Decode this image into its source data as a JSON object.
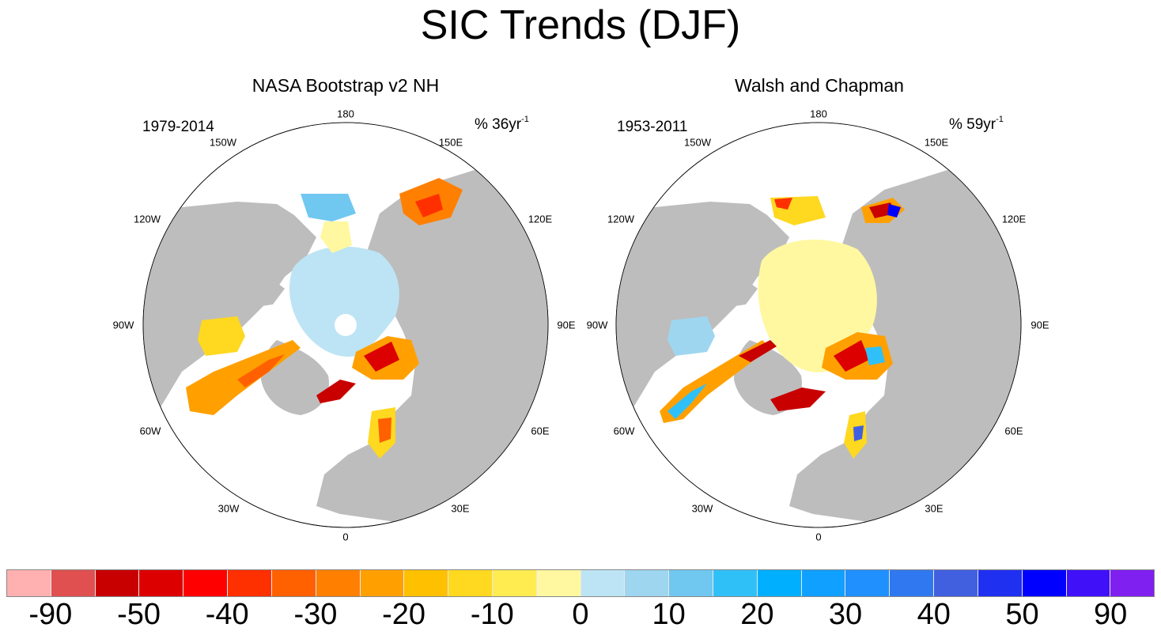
{
  "title": "SIC Trends (DJF)",
  "panels": [
    {
      "title": "NASA Bootstrap v2 NH",
      "years": "1979-2014",
      "units": "% 36yr",
      "units_sup": "-1"
    },
    {
      "title": "Walsh and Chapman",
      "years": "1953-2011",
      "units": "% 59yr",
      "units_sup": "-1"
    }
  ],
  "longitude_labels": [
    "180",
    "150E",
    "120E",
    "90E",
    "60E",
    "30E",
    "0",
    "30W",
    "60W",
    "90W",
    "120W",
    "150W"
  ],
  "colorbar": {
    "colors": [
      "#ffb0b0",
      "#e05050",
      "#c80000",
      "#dc0000",
      "#ff0000",
      "#ff3000",
      "#ff6000",
      "#ff8000",
      "#ffa000",
      "#ffc000",
      "#ffd820",
      "#ffec50",
      "#fff8a0",
      "#bde4f4",
      "#9ed6f0",
      "#70c8f0",
      "#30c0f8",
      "#00b0ff",
      "#10a0ff",
      "#2090ff",
      "#3078f0",
      "#4060e0",
      "#2030f0",
      "#0000ff",
      "#4010f8",
      "#8020f0"
    ],
    "labels": [
      "-90",
      "-50",
      "-40",
      "-30",
      "-20",
      "-10",
      "0",
      "10",
      "20",
      "30",
      "40",
      "50",
      "90"
    ]
  }
}
